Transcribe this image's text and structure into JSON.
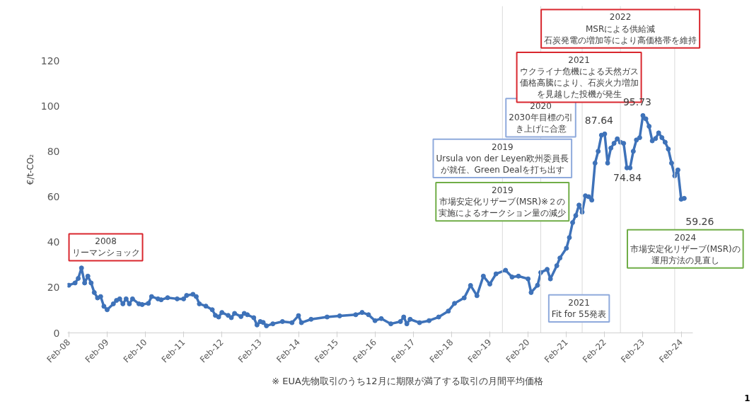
{
  "chart_data": {
    "type": "line",
    "ylabel": "€/t-CO₂",
    "x": [
      "2008-02",
      "2008-04",
      "2008-05",
      "2008-06",
      "2008-07",
      "2008-08",
      "2008-09",
      "2008-10",
      "2008-11",
      "2008-12",
      "2009-01",
      "2009-02",
      "2009-04",
      "2009-05",
      "2009-06",
      "2009-07",
      "2009-08",
      "2009-09",
      "2009-10",
      "2009-12",
      "2010-01",
      "2010-03",
      "2010-04",
      "2010-06",
      "2010-07",
      "2010-09",
      "2010-12",
      "2011-02",
      "2011-03",
      "2011-05",
      "2011-06",
      "2011-07",
      "2011-09",
      "2011-11",
      "2011-12",
      "2012-01",
      "2012-02",
      "2012-04",
      "2012-05",
      "2012-06",
      "2012-08",
      "2012-09",
      "2012-10",
      "2012-12",
      "2013-01",
      "2013-02",
      "2013-03",
      "2013-04",
      "2013-06",
      "2013-09",
      "2013-12",
      "2014-02",
      "2014-03",
      "2014-06",
      "2014-11",
      "2015-03",
      "2015-08",
      "2015-10",
      "2015-12",
      "2016-02",
      "2016-04",
      "2016-07",
      "2016-10",
      "2016-11",
      "2016-12",
      "2017-01",
      "2017-04",
      "2017-07",
      "2017-10",
      "2018-01",
      "2018-03",
      "2018-06",
      "2018-08",
      "2018-10",
      "2018-12",
      "2019-02",
      "2019-04",
      "2019-07",
      "2019-09",
      "2019-11",
      "2020-02",
      "2020-03",
      "2020-05",
      "2020-06",
      "2020-08",
      "2020-09",
      "2020-11",
      "2020-12",
      "2021-02",
      "2021-03",
      "2021-04",
      "2021-05",
      "2021-06",
      "2021-07",
      "2021-08",
      "2021-09",
      "2021-10",
      "2021-11",
      "2021-12",
      "2022-01",
      "2022-02",
      "2022-03",
      "2022-04",
      "2022-05",
      "2022-06",
      "2022-07",
      "2022-08",
      "2022-09",
      "2022-10",
      "2022-11",
      "2022-12",
      "2023-01",
      "2023-02",
      "2023-03",
      "2023-04",
      "2023-05",
      "2023-06",
      "2023-07",
      "2023-08",
      "2023-09",
      "2023-10",
      "2023-11",
      "2023-12",
      "2024-01",
      "2024-02",
      "2024-03"
    ],
    "series": [
      {
        "color": "#3e72b9",
        "values": [
          21,
          22,
          24,
          28.6,
          22,
          25,
          22,
          17.8,
          15.4,
          16,
          11.7,
          10.2,
          12.8,
          14.3,
          15,
          12.8,
          15,
          12.8,
          15,
          12.8,
          12.5,
          13,
          16,
          15,
          14.6,
          15.5,
          15,
          15,
          16.5,
          17,
          16,
          12.8,
          11.8,
          10.2,
          7.7,
          7,
          9,
          7.7,
          6.7,
          8.6,
          7.2,
          8.6,
          8,
          6.7,
          3.5,
          5,
          4.6,
          3.1,
          4,
          5,
          4.5,
          7.6,
          4.5,
          6,
          7,
          7.5,
          8,
          9,
          8,
          5.4,
          6.3,
          4,
          5,
          7,
          4,
          6,
          4.5,
          5.4,
          7,
          9.6,
          13,
          15.4,
          20.9,
          16.4,
          25,
          21.5,
          26,
          27.6,
          24.6,
          25,
          23.8,
          17.8,
          21,
          26.6,
          28,
          23.8,
          29.6,
          33,
          37.3,
          42,
          48.6,
          51.7,
          56.3,
          53.2,
          60.4,
          60,
          58.5,
          74.8,
          80,
          87.1,
          87.64,
          74.84,
          81.4,
          83.5,
          85.5,
          84,
          83.5,
          72.7,
          72.7,
          80,
          85,
          86,
          95.73,
          94.3,
          91,
          84.6,
          85.6,
          88.1,
          86,
          84,
          81,
          74.8,
          69.2,
          71.8,
          58.9,
          59.26
        ],
        "value_labels": [
          null,
          null,
          null,
          null,
          null,
          null,
          null,
          null,
          null,
          null,
          null,
          null,
          null,
          null,
          null,
          null,
          null,
          null,
          null,
          null,
          null,
          null,
          null,
          null,
          null,
          null,
          null,
          null,
          null,
          null,
          null,
          null,
          null,
          null,
          null,
          null,
          null,
          null,
          null,
          null,
          null,
          null,
          null,
          null,
          null,
          null,
          null,
          null,
          null,
          null,
          null,
          null,
          null,
          null,
          null,
          null,
          null,
          null,
          null,
          null,
          null,
          null,
          null,
          null,
          null,
          null,
          null,
          null,
          null,
          null,
          null,
          null,
          null,
          null,
          null,
          null,
          null,
          null,
          null,
          null,
          null,
          null,
          null,
          null,
          null,
          null,
          null,
          null,
          null,
          null,
          null,
          null,
          null,
          null,
          null,
          null,
          null,
          null,
          null,
          null,
          "87.64",
          "74.84",
          null,
          null,
          null,
          null,
          null,
          null,
          null,
          null,
          null,
          null,
          "95.73",
          null,
          null,
          null,
          null,
          null,
          null,
          null,
          null,
          null,
          null,
          null,
          null,
          "59.26"
        ]
      }
    ],
    "marker": "circle",
    "line_style": "solid",
    "grid": false,
    "xlim": [
      "2008-01-20",
      "2024-05-20"
    ],
    "xticks": [
      {
        "value": "2008-02",
        "label": "Feb-08"
      },
      {
        "value": "2009-02",
        "label": "Feb-09"
      },
      {
        "value": "2010-02",
        "label": "Feb-10"
      },
      {
        "value": "2011-02",
        "label": "Feb-11"
      },
      {
        "value": "2012-02",
        "label": "Feb-12"
      },
      {
        "value": "2013-02",
        "label": "Feb-13"
      },
      {
        "value": "2014-02",
        "label": "Feb-14"
      },
      {
        "value": "2015-02",
        "label": "Feb-15"
      },
      {
        "value": "2016-02",
        "label": "Feb-16"
      },
      {
        "value": "2017-02",
        "label": "Feb-17"
      },
      {
        "value": "2018-02",
        "label": "Feb-18"
      },
      {
        "value": "2019-02",
        "label": "Feb-19"
      },
      {
        "value": "2020-02",
        "label": "Feb-20"
      },
      {
        "value": "2021-02",
        "label": "Feb-21"
      },
      {
        "value": "2022-02",
        "label": "Feb-22"
      },
      {
        "value": "2023-02",
        "label": "Feb-23"
      },
      {
        "value": "2024-02",
        "label": "Feb-24"
      }
    ],
    "ylim": [
      0,
      144
    ],
    "yticks": [
      0,
      20,
      40,
      60,
      80,
      100,
      120
    ],
    "ref_lines": [
      {
        "axis": "x",
        "value": "2019-06",
        "color": "#d9d9d9"
      },
      {
        "axis": "x",
        "value": "2020-06",
        "color": "#d9d9d9"
      },
      {
        "axis": "x",
        "value": "2021-07",
        "color": "#d9d9d9"
      },
      {
        "axis": "x",
        "value": "2022-07",
        "color": "#d9d9d9"
      },
      {
        "axis": "x",
        "value": "2023-12",
        "color": "#d9d9d9"
      }
    ],
    "annotations": [
      {
        "text": "2019\n市場安定化リザーブ(MSR)※２の実施によるオークション量の減少",
        "x": "2019-06",
        "y": 57.8
      },
      {
        "text": "2019\nUrsula von der Leyen欧州委員長が就任、Green Dealを打ち出す",
        "x": "2019-06",
        "y": 76.9
      },
      {
        "text": "2020\n2030年目標の引き上げに合意",
        "x": "2020-06",
        "y": 94.8
      },
      {
        "text": "2021\nFit for 55発表",
        "x": "2021-06",
        "y": 10.8
      },
      {
        "text": "2021\nウクライナ危機による天然ガス価格高騰により、石炭火力増加を見越した投機が発生",
        "x": "2021-06",
        "y": 112.6
      },
      {
        "text": "2022\nMSRによる供給減石炭発電の増加等により高価格帯を維持",
        "x": "2022-07",
        "y": 134
      },
      "2008\nリーマンショック",
      "2024\n市場安定化リザーブ(MSR)の運用方法の見直し",
      "※  EUA先物取引のうち12月に期限が満了する取引の月間平均価格",
      "1"
    ]
  }
}
